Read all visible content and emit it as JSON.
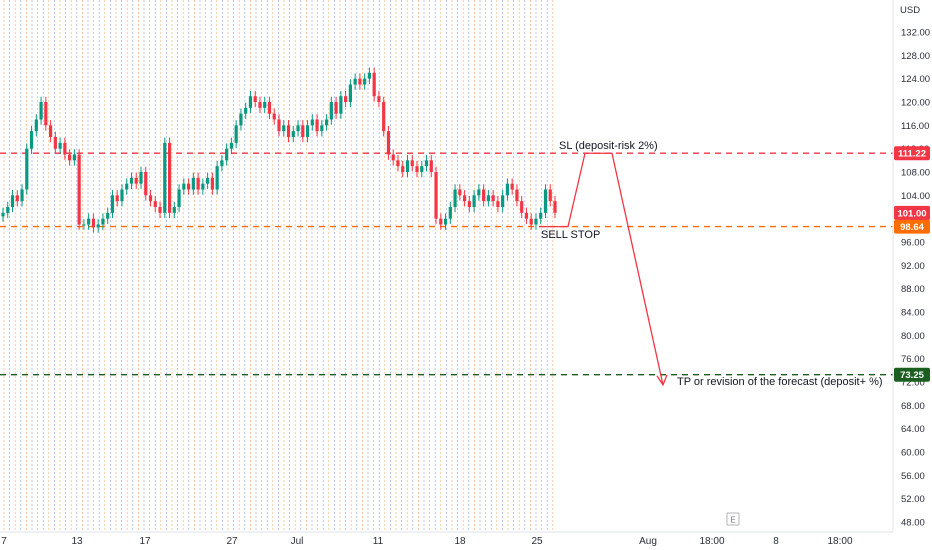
{
  "chart_data": {
    "type": "candlestick",
    "currency": "USD",
    "y_axis": {
      "min": 47,
      "max": 136,
      "ticks": [
        48,
        52,
        56,
        60,
        64,
        68,
        72,
        76,
        80,
        84,
        88,
        92,
        96,
        100,
        104,
        108,
        112,
        116,
        120,
        124,
        128,
        132
      ]
    },
    "x_axis": {
      "labels": [
        "7",
        "13",
        "17",
        "27",
        "Jul",
        "11",
        "18",
        "25",
        "Aug",
        "18:00",
        "8",
        "18:00"
      ]
    },
    "price_levels": [
      {
        "name": "stop-loss",
        "value": 111.22,
        "label": "111.22",
        "color": "#f23645"
      },
      {
        "name": "sell-stop",
        "value": 98.64,
        "label": "98.64",
        "color": "#ff6d00"
      },
      {
        "name": "take-profit",
        "value": 73.25,
        "label": "73.25",
        "color": "#1b5e20"
      },
      {
        "name": "last-price",
        "value": 101.0,
        "label": "101.00",
        "color": "#f23645"
      }
    ],
    "annotations": [
      {
        "name": "sl-annotation",
        "text": "SL (deposit-risk 2%)"
      },
      {
        "name": "sell-stop-annotation",
        "text": "SELL STOP"
      },
      {
        "name": "tp-annotation",
        "text": "TP or revision of the forecast (deposit+ %)"
      }
    ],
    "forecast_path": [
      98.64,
      111.22,
      111.22,
      71.5
    ],
    "series": [
      {
        "values": [
          101,
          102,
          104,
          103,
          105,
          112,
          115,
          117,
          120,
          116,
          114,
          112,
          113,
          111,
          110,
          111,
          99,
          99,
          100,
          98.5,
          99,
          100,
          101,
          104,
          103,
          105,
          106,
          107,
          106,
          108,
          104,
          103,
          102,
          101,
          113,
          101,
          102,
          105,
          106,
          105,
          107,
          105,
          106,
          107,
          105,
          109,
          110,
          112,
          113,
          116,
          118,
          119,
          121,
          120,
          119,
          120,
          118,
          117,
          115,
          116,
          114,
          115,
          116,
          114,
          116,
          117,
          115,
          116,
          117,
          120,
          118,
          121,
          120,
          123,
          124,
          123,
          124,
          125,
          121,
          120,
          115,
          111,
          110,
          109,
          108,
          110,
          109,
          108,
          109,
          110,
          108,
          100,
          99,
          100,
          102,
          105,
          104,
          103,
          102,
          104,
          105,
          103,
          104,
          103,
          102,
          104,
          106,
          105,
          103,
          101,
          100,
          99,
          100,
          101,
          105,
          103,
          101
        ]
      }
    ]
  }
}
